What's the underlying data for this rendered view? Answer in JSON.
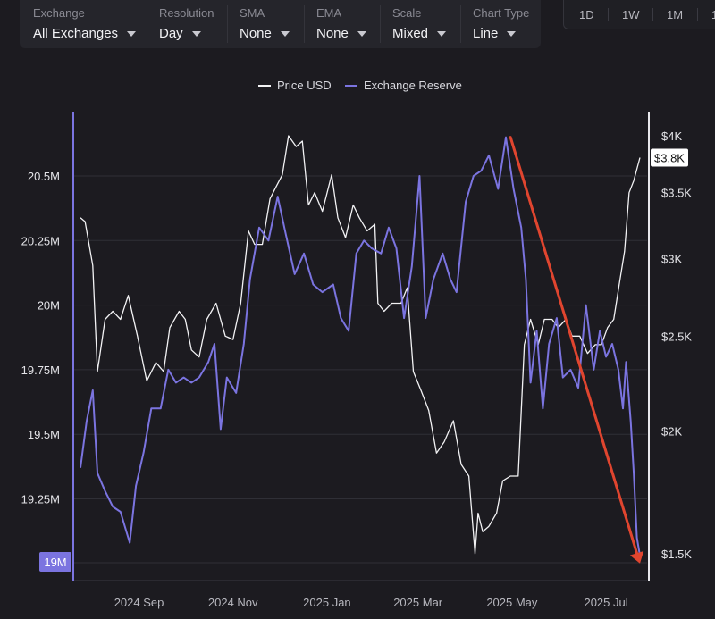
{
  "controls": [
    {
      "label": "Exchange",
      "value": "All Exchanges"
    },
    {
      "label": "Resolution",
      "value": "Day"
    },
    {
      "label": "SMA",
      "value": "None"
    },
    {
      "label": "EMA",
      "value": "None"
    },
    {
      "label": "Scale",
      "value": "Mixed"
    },
    {
      "label": "Chart Type",
      "value": "Line"
    }
  ],
  "timeframes": [
    "1D",
    "1W",
    "1M",
    "1"
  ],
  "colors": {
    "background": "#1c1b20",
    "price": "#f2f2f4",
    "reserve": "#7b74e0",
    "arrow": "#e0452f",
    "grid": "#2f2f36"
  },
  "chart_data": {
    "type": "line",
    "legend": [
      "Price USD",
      "Exchange Reserve"
    ],
    "legend_position": "top-center",
    "x_ticks": [
      {
        "label": "2024 Sep",
        "date": "2024-09-01"
      },
      {
        "label": "2024 Nov",
        "date": "2024-11-01"
      },
      {
        "label": "2025 Jan",
        "date": "2025-01-01"
      },
      {
        "label": "2025 Mar",
        "date": "2025-03-01"
      },
      {
        "label": "2025 May",
        "date": "2025-05-01"
      },
      {
        "label": "2025 Jul",
        "date": "2025-07-01"
      }
    ],
    "xlim": [
      "2024-07-25",
      "2025-07-23"
    ],
    "left_axis": {
      "name": "Exchange Reserve",
      "ticks": [
        {
          "label": "20.5M",
          "value": 20.5
        },
        {
          "label": "20.25M",
          "value": 20.25
        },
        {
          "label": "20M",
          "value": 20.0
        },
        {
          "label": "19.75M",
          "value": 19.75
        },
        {
          "label": "19.5M",
          "value": 19.5
        },
        {
          "label": "19.25M",
          "value": 19.25
        }
      ],
      "current_label": "19M",
      "current_value": 19.03
    },
    "right_axis": {
      "name": "Price USD",
      "scale": "log",
      "ticks": [
        {
          "label": "$4K",
          "value": 4000
        },
        {
          "label": "$3.5K",
          "value": 3500
        },
        {
          "label": "$3K",
          "value": 3000
        },
        {
          "label": "$2.5K",
          "value": 2500
        },
        {
          "label": "$2K",
          "value": 2000
        },
        {
          "label": "$1.5K",
          "value": 1500
        }
      ],
      "current_label": "$3.8K",
      "current_value": 3800
    },
    "grid": true,
    "series": [
      {
        "name": "Price USD",
        "axis": "right",
        "points": [
          [
            "2024-07-25",
            3300
          ],
          [
            "2024-07-28",
            3270
          ],
          [
            "2024-08-02",
            2950
          ],
          [
            "2024-08-05",
            2300
          ],
          [
            "2024-08-10",
            2600
          ],
          [
            "2024-08-15",
            2650
          ],
          [
            "2024-08-20",
            2600
          ],
          [
            "2024-08-25",
            2750
          ],
          [
            "2024-08-31",
            2500
          ],
          [
            "2024-09-06",
            2250
          ],
          [
            "2024-09-12",
            2350
          ],
          [
            "2024-09-17",
            2300
          ],
          [
            "2024-09-21",
            2550
          ],
          [
            "2024-09-27",
            2650
          ],
          [
            "2024-10-01",
            2600
          ],
          [
            "2024-10-05",
            2420
          ],
          [
            "2024-10-10",
            2380
          ],
          [
            "2024-10-15",
            2600
          ],
          [
            "2024-10-21",
            2700
          ],
          [
            "2024-10-27",
            2500
          ],
          [
            "2024-11-01",
            2480
          ],
          [
            "2024-11-06",
            2700
          ],
          [
            "2024-11-11",
            3200
          ],
          [
            "2024-11-15",
            3100
          ],
          [
            "2024-11-20",
            3100
          ],
          [
            "2024-11-25",
            3450
          ],
          [
            "2024-11-29",
            3550
          ],
          [
            "2024-12-03",
            3650
          ],
          [
            "2024-12-07",
            4000
          ],
          [
            "2024-12-12",
            3900
          ],
          [
            "2024-12-16",
            3950
          ],
          [
            "2024-12-20",
            3400
          ],
          [
            "2024-12-24",
            3500
          ],
          [
            "2024-12-29",
            3350
          ],
          [
            "2025-01-04",
            3650
          ],
          [
            "2025-01-08",
            3300
          ],
          [
            "2025-01-13",
            3150
          ],
          [
            "2025-01-18",
            3400
          ],
          [
            "2025-01-22",
            3300
          ],
          [
            "2025-01-27",
            3200
          ],
          [
            "2025-02-01",
            3250
          ],
          [
            "2025-02-03",
            2700
          ],
          [
            "2025-02-07",
            2650
          ],
          [
            "2025-02-12",
            2700
          ],
          [
            "2025-02-18",
            2700
          ],
          [
            "2025-02-22",
            2800
          ],
          [
            "2025-02-26",
            2300
          ],
          [
            "2025-03-03",
            2200
          ],
          [
            "2025-03-08",
            2100
          ],
          [
            "2025-03-13",
            1900
          ],
          [
            "2025-03-18",
            1950
          ],
          [
            "2025-03-24",
            2050
          ],
          [
            "2025-03-29",
            1850
          ],
          [
            "2025-04-03",
            1800
          ],
          [
            "2025-04-07",
            1500
          ],
          [
            "2025-04-09",
            1650
          ],
          [
            "2025-04-12",
            1580
          ],
          [
            "2025-04-16",
            1600
          ],
          [
            "2025-04-21",
            1650
          ],
          [
            "2025-04-25",
            1780
          ],
          [
            "2025-04-30",
            1800
          ],
          [
            "2025-05-05",
            1800
          ],
          [
            "2025-05-09",
            2450
          ],
          [
            "2025-05-13",
            2600
          ],
          [
            "2025-05-18",
            2450
          ],
          [
            "2025-05-22",
            2600
          ],
          [
            "2025-05-27",
            2600
          ],
          [
            "2025-05-31",
            2550
          ],
          [
            "2025-06-05",
            2600
          ],
          [
            "2025-06-09",
            2500
          ],
          [
            "2025-06-14",
            2500
          ],
          [
            "2025-06-19",
            2400
          ],
          [
            "2025-06-24",
            2450
          ],
          [
            "2025-06-28",
            2450
          ],
          [
            "2025-07-02",
            2550
          ],
          [
            "2025-07-06",
            2600
          ],
          [
            "2025-07-10",
            2850
          ],
          [
            "2025-07-13",
            3050
          ],
          [
            "2025-07-16",
            3500
          ],
          [
            "2025-07-19",
            3600
          ],
          [
            "2025-07-23",
            3800
          ]
        ]
      },
      {
        "name": "Exchange Reserve",
        "axis": "left",
        "points": [
          [
            "2024-07-25",
            19.37
          ],
          [
            "2024-07-29",
            19.55
          ],
          [
            "2024-08-02",
            19.67
          ],
          [
            "2024-08-05",
            19.35
          ],
          [
            "2024-08-10",
            19.28
          ],
          [
            "2024-08-15",
            19.22
          ],
          [
            "2024-08-20",
            19.2
          ],
          [
            "2024-08-26",
            19.08
          ],
          [
            "2024-08-30",
            19.3
          ],
          [
            "2024-09-04",
            19.43
          ],
          [
            "2024-09-09",
            19.6
          ],
          [
            "2024-09-15",
            19.6
          ],
          [
            "2024-09-20",
            19.75
          ],
          [
            "2024-09-25",
            19.7
          ],
          [
            "2024-09-30",
            19.72
          ],
          [
            "2024-10-05",
            19.7
          ],
          [
            "2024-10-10",
            19.72
          ],
          [
            "2024-10-16",
            19.78
          ],
          [
            "2024-10-20",
            19.85
          ],
          [
            "2024-10-24",
            19.52
          ],
          [
            "2024-10-28",
            19.72
          ],
          [
            "2024-11-03",
            19.66
          ],
          [
            "2024-11-08",
            19.85
          ],
          [
            "2024-11-12",
            20.1
          ],
          [
            "2024-11-18",
            20.3
          ],
          [
            "2024-11-24",
            20.25
          ],
          [
            "2024-11-30",
            20.42
          ],
          [
            "2024-12-05",
            20.28
          ],
          [
            "2024-12-11",
            20.12
          ],
          [
            "2024-12-17",
            20.2
          ],
          [
            "2024-12-23",
            20.08
          ],
          [
            "2024-12-29",
            20.05
          ],
          [
            "2025-01-05",
            20.08
          ],
          [
            "2025-01-10",
            19.95
          ],
          [
            "2025-01-15",
            19.9
          ],
          [
            "2025-01-20",
            20.2
          ],
          [
            "2025-01-25",
            20.25
          ],
          [
            "2025-01-30",
            20.22
          ],
          [
            "2025-02-05",
            20.2
          ],
          [
            "2025-02-10",
            20.3
          ],
          [
            "2025-02-15",
            20.22
          ],
          [
            "2025-02-20",
            19.95
          ],
          [
            "2025-02-25",
            20.15
          ],
          [
            "2025-03-02",
            20.5
          ],
          [
            "2025-03-06",
            19.95
          ],
          [
            "2025-03-11",
            20.1
          ],
          [
            "2025-03-17",
            20.2
          ],
          [
            "2025-03-22",
            20.1
          ],
          [
            "2025-03-26",
            20.05
          ],
          [
            "2025-04-01",
            20.4
          ],
          [
            "2025-04-06",
            20.5
          ],
          [
            "2025-04-11",
            20.52
          ],
          [
            "2025-04-16",
            20.58
          ],
          [
            "2025-04-22",
            20.45
          ],
          [
            "2025-04-27",
            20.65
          ],
          [
            "2025-05-02",
            20.45
          ],
          [
            "2025-05-07",
            20.3
          ],
          [
            "2025-05-10",
            20.1
          ],
          [
            "2025-05-13",
            19.7
          ],
          [
            "2025-05-17",
            19.9
          ],
          [
            "2025-05-21",
            19.6
          ],
          [
            "2025-05-25",
            19.85
          ],
          [
            "2025-05-30",
            19.95
          ],
          [
            "2025-06-03",
            19.72
          ],
          [
            "2025-06-08",
            19.75
          ],
          [
            "2025-06-13",
            19.68
          ],
          [
            "2025-06-18",
            20.0
          ],
          [
            "2025-06-23",
            19.75
          ],
          [
            "2025-06-27",
            19.9
          ],
          [
            "2025-07-01",
            19.8
          ],
          [
            "2025-07-05",
            19.85
          ],
          [
            "2025-07-09",
            19.75
          ],
          [
            "2025-07-12",
            19.6
          ],
          [
            "2025-07-14",
            19.78
          ],
          [
            "2025-07-17",
            19.55
          ],
          [
            "2025-07-19",
            19.35
          ],
          [
            "2025-07-21",
            19.1
          ],
          [
            "2025-07-23",
            19.03
          ]
        ]
      }
    ],
    "annotation": {
      "type": "trend-arrow",
      "from": {
        "date": "2025-04-30",
        "reserve": 20.65
      },
      "to": {
        "date": "2025-07-23",
        "reserve": 19.0
      }
    }
  }
}
